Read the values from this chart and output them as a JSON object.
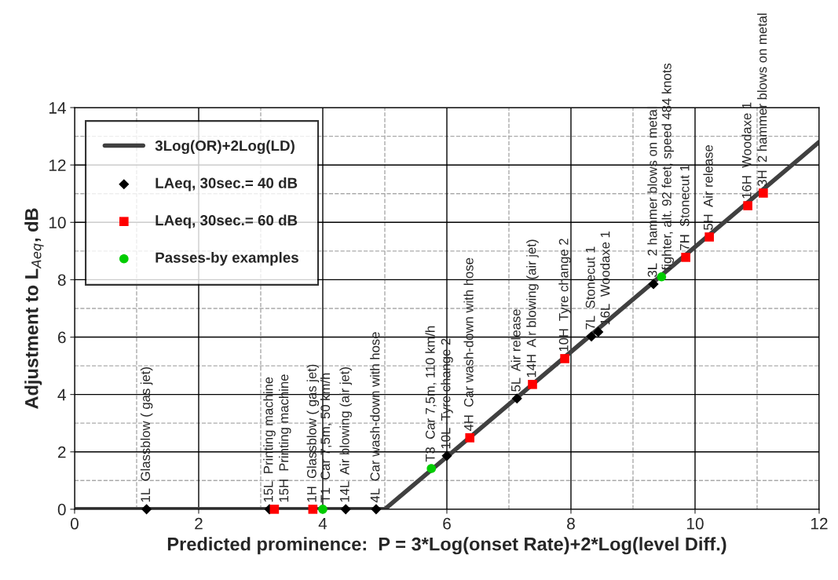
{
  "chart_data": {
    "type": "scatter",
    "xlabel": "Predicted prominence:  P = 3*Log(onset Rate)+2*Log(level Diff.)",
    "ylabel": "Adjustment to L$_{Aeq}$, dB",
    "xlim": [
      0,
      12
    ],
    "xticks": [
      0,
      2,
      4,
      6,
      8,
      10,
      12
    ],
    "ylim": [
      0,
      14
    ],
    "yticks": [
      0,
      2,
      4,
      6,
      8,
      10,
      12,
      14
    ],
    "grid": true,
    "legend": "top left",
    "series": [
      {
        "name": "3Log(OR)+2Log(LD)",
        "type": "line",
        "color": "#404040",
        "marker": "none",
        "x": [
          0,
          5,
          12
        ],
        "values": [
          0,
          0,
          12.8
        ]
      },
      {
        "name": "LAeq, 30sec.= 40 dB",
        "color": "#000000",
        "marker": "diamond",
        "x": [
          1.16,
          3.14,
          4.37,
          4.86,
          6.0,
          7.13,
          8.33,
          8.44,
          9.33
        ],
        "values": [
          0,
          0,
          0,
          0,
          1.86,
          3.86,
          6.02,
          6.18,
          7.85
        ]
      },
      {
        "name": "LAeq, 30sec.= 60 dB",
        "color": "#ff0000",
        "marker": "square",
        "x": [
          3.22,
          3.84,
          6.37,
          7.38,
          7.9,
          9.85,
          10.23,
          10.85,
          11.1
        ],
        "values": [
          0,
          0,
          2.49,
          4.35,
          5.25,
          8.78,
          9.49,
          10.58,
          11.02
        ]
      },
      {
        "name": "Passes-by examples",
        "color": "#00cc00",
        "marker": "circle",
        "x": [
          4.0,
          5.75,
          9.46
        ],
        "values": [
          0,
          1.42,
          8.1
        ]
      }
    ],
    "annotations": [
      {
        "text": "1L  Glassblow ( gas jet)",
        "x": 1.16,
        "y": 0
      },
      {
        "text": "15L  Printing machine",
        "x": 3.14,
        "y": 0
      },
      {
        "text": "15H  Printing machine",
        "x": 3.22,
        "y": 0
      },
      {
        "text": "1H  Glassblow ( gas jet)",
        "x": 3.84,
        "y": 0
      },
      {
        "text": "T1  Car 7,5m, 50 km/h",
        "x": 4.0,
        "y": 0
      },
      {
        "text": "14L  Air blowing (air jet)",
        "x": 4.37,
        "y": 0
      },
      {
        "text": "4L  Car wash-down with hose",
        "x": 4.86,
        "y": 0
      },
      {
        "text": "T3  Car 7,5m, 110 km/h",
        "x": 5.75,
        "y": 1.42
      },
      {
        "text": "10L  Tyre change 2",
        "x": 6.0,
        "y": 1.86
      },
      {
        "text": "4H  Car wash-down with hose",
        "x": 6.37,
        "y": 2.49
      },
      {
        "text": "5L  Air release",
        "x": 7.13,
        "y": 3.86
      },
      {
        "text": "14H  Air blowing (air jet)",
        "x": 7.38,
        "y": 4.35
      },
      {
        "text": "10H  Tyre change 2",
        "x": 7.9,
        "y": 5.25
      },
      {
        "text": "7L  Stonecut 1",
        "x": 8.33,
        "y": 6.02
      },
      {
        "text": "16L  Woodaxe 1",
        "x": 8.44,
        "y": 6.18
      },
      {
        "text": "3L  2 hammer blows on metal",
        "x": 9.33,
        "y": 7.85
      },
      {
        "text": "fighter, alt. 92 feet, speed 484 knots",
        "x": 9.46,
        "y": 8.1
      },
      {
        "text": "7H  Stonecut 1",
        "x": 9.85,
        "y": 8.78
      },
      {
        "text": "5H  Air release",
        "x": 10.23,
        "y": 9.49
      },
      {
        "text": "16H  Woodaxe 1",
        "x": 10.85,
        "y": 10.58
      },
      {
        "text": "3H  2 hammer blows on metal",
        "x": 11.1,
        "y": 11.02
      }
    ]
  }
}
